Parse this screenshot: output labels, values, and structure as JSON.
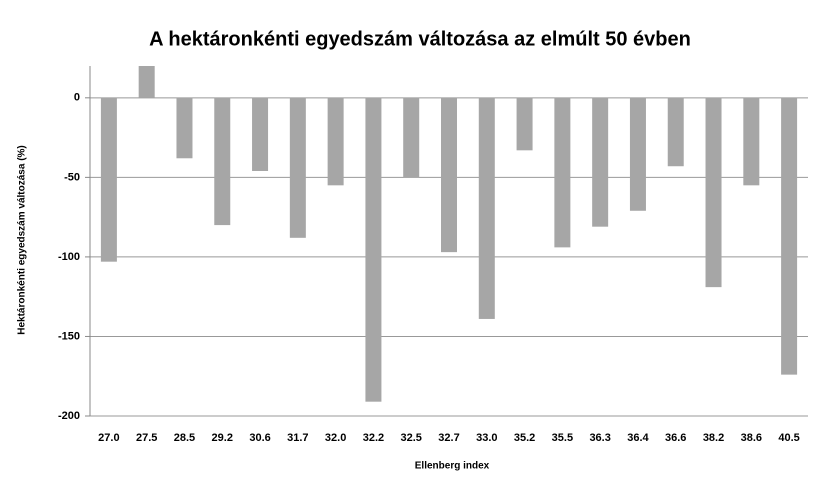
{
  "chart_data": {
    "type": "bar",
    "title": "A hektáronkénti egyedszám változása az elmúlt 50   évben",
    "x_label": "Ellenberg index",
    "y_label": "Hektáronkénti egyedszám változása  (%)",
    "categories": [
      "27.0",
      "27.5",
      "28.5",
      "29.2",
      "30.6",
      "31.7",
      "32.0",
      "32.2",
      "32.5",
      "32.7",
      "33.0",
      "35.2",
      "35.5",
      "36.3",
      "36.4",
      "36.6",
      "38.2",
      "38.6",
      "40.5"
    ],
    "values": [
      -103,
      20,
      -38,
      -80,
      -46,
      -88,
      -55,
      -191,
      -50,
      -97,
      -139,
      -33,
      -94,
      -81,
      -71,
      -43,
      -119,
      -55,
      -174
    ],
    "color": "#a6a6a6",
    "ylim": [
      -200,
      20
    ],
    "yticks": [
      0,
      -50,
      -100,
      -150,
      -200
    ],
    "grid": true
  }
}
